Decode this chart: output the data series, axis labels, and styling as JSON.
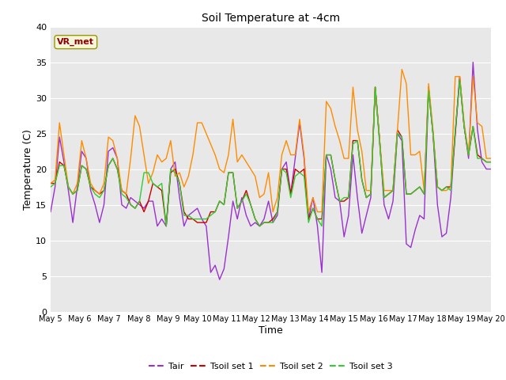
{
  "title": "Soil Temperature at -4cm",
  "xlabel": "Time",
  "ylabel": "Temperature (C)",
  "ylim": [
    0,
    40
  ],
  "yticks": [
    0,
    5,
    10,
    15,
    20,
    25,
    30,
    35,
    40
  ],
  "xtick_labels": [
    "May 5",
    "May 6",
    "May 7",
    "May 8",
    "May 9",
    "May 10",
    "May 11",
    "May 12",
    "May 13",
    "May 14",
    "May 15",
    "May 16",
    "May 17",
    "May 18",
    "May 19",
    "May 20"
  ],
  "plot_bg_color": "#e8e8e8",
  "grid_color": "#ffffff",
  "annotation_text": "VR_met",
  "annotation_color": "#8b0000",
  "annotation_box_facecolor": "#f5f5dc",
  "annotation_box_edgecolor": "#999900",
  "colors": {
    "Tair": "#9b30d0",
    "Tsoil1": "#cc0000",
    "Tsoil2": "#ff8c00",
    "Tsoil3": "#33cc33"
  },
  "legend_labels": [
    "Tair",
    "Tsoil set 1",
    "Tsoil set 2",
    "Tsoil set 3"
  ],
  "Tair": [
    14.0,
    17.5,
    24.5,
    21.0,
    17.0,
    12.5,
    17.5,
    22.5,
    21.5,
    17.0,
    15.0,
    12.5,
    15.0,
    22.5,
    23.0,
    21.5,
    15.0,
    14.5,
    16.0,
    15.5,
    15.0,
    14.5,
    15.5,
    15.5,
    12.0,
    13.0,
    12.0,
    20.0,
    21.0,
    16.0,
    12.0,
    13.5,
    14.0,
    14.5,
    13.0,
    12.0,
    5.5,
    6.5,
    4.5,
    6.0,
    10.5,
    15.5,
    13.0,
    16.0,
    13.5,
    12.0,
    12.5,
    12.0,
    13.0,
    15.5,
    12.5,
    13.5,
    20.0,
    21.0,
    16.5,
    21.5,
    26.5,
    21.5,
    13.0,
    16.0,
    12.0,
    5.5,
    22.0,
    20.0,
    16.0,
    15.5,
    10.5,
    13.5,
    22.0,
    16.0,
    11.0,
    13.5,
    16.0,
    31.5,
    24.0,
    15.0,
    13.0,
    15.5,
    25.0,
    24.0,
    9.5,
    9.0,
    11.5,
    13.5,
    13.0,
    31.0,
    25.0,
    15.0,
    10.5,
    11.0,
    16.0,
    25.0,
    32.5,
    26.0,
    21.5,
    35.0,
    25.5,
    21.0,
    20.0,
    20.0
  ],
  "Tsoil1": [
    18.0,
    18.0,
    21.0,
    20.5,
    17.5,
    16.5,
    17.0,
    20.5,
    20.0,
    17.5,
    17.0,
    16.5,
    17.0,
    20.5,
    21.5,
    20.0,
    17.0,
    16.5,
    15.0,
    14.5,
    15.5,
    14.0,
    15.5,
    18.0,
    17.5,
    17.0,
    12.0,
    19.5,
    20.0,
    18.0,
    14.0,
    13.0,
    13.0,
    12.5,
    12.5,
    12.5,
    14.0,
    14.0,
    15.5,
    15.0,
    19.5,
    19.5,
    14.5,
    15.5,
    17.0,
    15.0,
    13.0,
    12.0,
    12.5,
    12.5,
    13.0,
    14.0,
    20.0,
    20.0,
    16.5,
    20.0,
    19.5,
    20.0,
    13.0,
    14.5,
    13.0,
    13.0,
    22.0,
    22.0,
    18.5,
    15.5,
    15.5,
    16.0,
    24.0,
    24.0,
    18.5,
    16.0,
    16.5,
    31.5,
    24.0,
    16.0,
    16.5,
    17.0,
    25.5,
    24.5,
    16.5,
    16.5,
    17.0,
    17.5,
    16.5,
    31.5,
    25.0,
    17.5,
    17.0,
    17.5,
    17.5,
    25.0,
    33.0,
    26.0,
    22.0,
    26.0,
    22.0,
    21.5,
    21.0,
    21.0
  ],
  "Tsoil2": [
    18.0,
    18.5,
    26.5,
    22.0,
    17.5,
    16.5,
    18.0,
    24.0,
    21.5,
    18.0,
    17.0,
    16.5,
    18.0,
    24.5,
    24.0,
    21.5,
    17.0,
    16.5,
    21.5,
    27.5,
    26.0,
    22.0,
    18.0,
    19.5,
    22.0,
    21.0,
    21.5,
    24.0,
    19.0,
    19.5,
    17.5,
    19.0,
    22.0,
    26.5,
    26.5,
    25.0,
    23.5,
    22.0,
    20.0,
    19.5,
    22.0,
    27.0,
    21.0,
    22.0,
    21.0,
    20.0,
    19.0,
    16.0,
    16.5,
    19.5,
    14.0,
    16.0,
    22.0,
    24.0,
    22.0,
    22.0,
    27.0,
    22.0,
    14.0,
    16.0,
    14.0,
    14.0,
    29.5,
    28.5,
    26.0,
    24.0,
    21.5,
    21.5,
    31.5,
    25.5,
    22.5,
    17.0,
    17.0,
    31.5,
    24.0,
    17.0,
    17.0,
    17.0,
    25.5,
    34.0,
    32.0,
    22.0,
    22.0,
    22.5,
    17.0,
    32.0,
    25.5,
    17.5,
    17.0,
    17.0,
    17.5,
    33.0,
    33.0,
    26.5,
    22.0,
    33.0,
    26.5,
    26.0,
    21.5,
    21.5
  ],
  "Tsoil3": [
    17.5,
    18.0,
    20.5,
    20.5,
    17.5,
    16.5,
    17.0,
    20.5,
    20.0,
    17.5,
    16.5,
    16.0,
    17.0,
    20.5,
    21.5,
    20.0,
    16.5,
    16.0,
    15.0,
    14.5,
    15.5,
    19.5,
    19.5,
    18.0,
    17.5,
    18.0,
    12.0,
    20.0,
    19.5,
    18.0,
    13.5,
    13.5,
    13.0,
    13.0,
    13.0,
    13.0,
    13.5,
    14.0,
    15.5,
    15.0,
    19.5,
    19.5,
    14.5,
    15.5,
    16.5,
    15.0,
    13.0,
    12.0,
    12.5,
    12.5,
    12.5,
    14.0,
    20.0,
    19.5,
    16.0,
    19.0,
    19.5,
    19.0,
    12.5,
    14.5,
    13.0,
    12.0,
    22.0,
    22.0,
    18.5,
    15.5,
    16.0,
    16.0,
    23.5,
    24.0,
    18.5,
    16.0,
    16.5,
    31.5,
    23.5,
    16.0,
    16.5,
    17.0,
    25.0,
    24.5,
    16.5,
    16.5,
    17.0,
    17.5,
    16.5,
    31.0,
    25.0,
    17.5,
    17.0,
    17.5,
    17.0,
    25.5,
    32.5,
    26.0,
    22.0,
    26.0,
    21.5,
    21.5,
    21.0,
    21.0
  ]
}
